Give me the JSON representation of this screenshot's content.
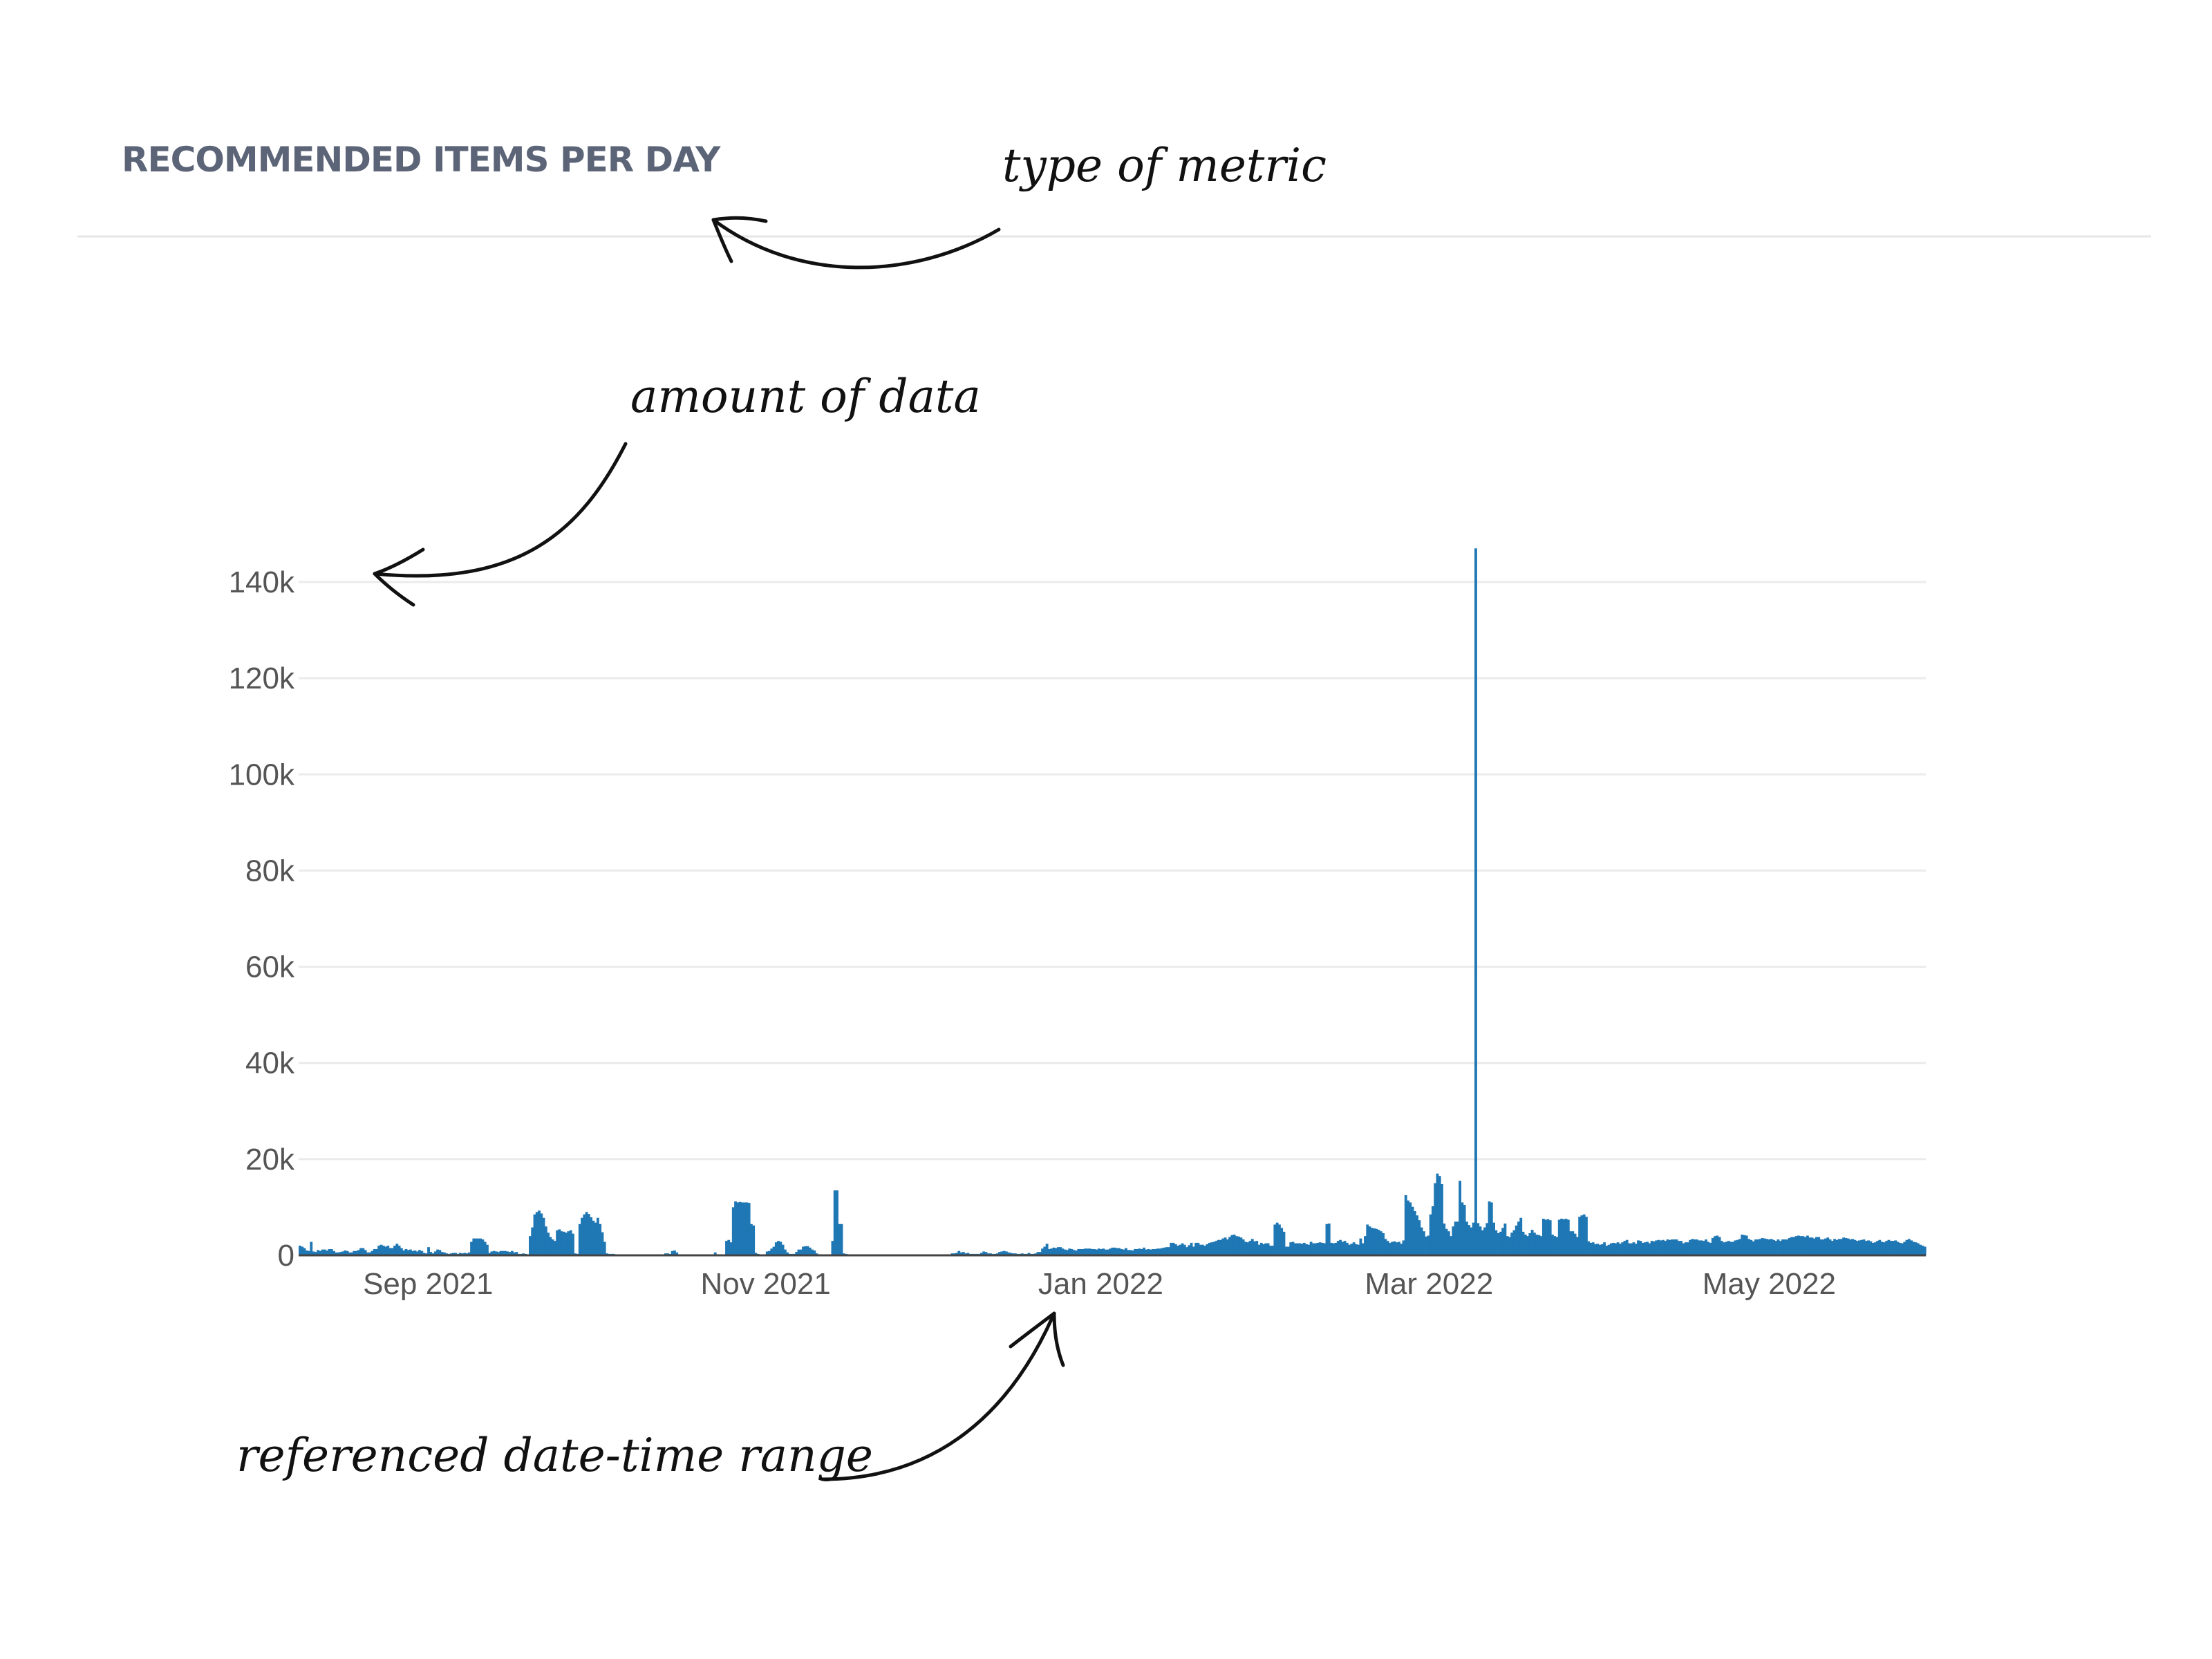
{
  "panel": {
    "title": "RECOMMENDED ITEMS PER DAY"
  },
  "annotations": {
    "metric": "type of metric",
    "amount": "amount of data",
    "range": "referenced date-time range"
  },
  "colors": {
    "bar": "#1f77b4",
    "title": "#5c6478",
    "grid": "#ebebeb"
  },
  "chart_data": {
    "type": "bar",
    "title": "RECOMMENDED ITEMS PER DAY",
    "xlabel": "",
    "ylabel": "",
    "ylim": [
      0,
      140000
    ],
    "grid": true,
    "y_ticks": [
      {
        "value": 0,
        "label": "0"
      },
      {
        "value": 20000,
        "label": "20k"
      },
      {
        "value": 40000,
        "label": "40k"
      },
      {
        "value": 60000,
        "label": "60k"
      },
      {
        "value": 80000,
        "label": "80k"
      },
      {
        "value": 100000,
        "label": "100k"
      },
      {
        "value": 120000,
        "label": "120k"
      },
      {
        "value": 140000,
        "label": "140k"
      }
    ],
    "x_start": "2021-08-20",
    "x_end": "2022-06-10",
    "x_ticks": [
      {
        "date": "2021-09-01",
        "label": "Sep 2021"
      },
      {
        "date": "2021-11-01",
        "label": "Nov 2021"
      },
      {
        "date": "2022-01-01",
        "label": "Jan 2022"
      },
      {
        "date": "2022-03-01",
        "label": "Mar 2022"
      },
      {
        "date": "2022-05-01",
        "label": "May 2022"
      }
    ],
    "series": [
      {
        "name": "Recommended items",
        "values": [
          2000,
          1800,
          1500,
          1000,
          900,
          2800,
          800,
          700,
          1100,
          900,
          1200,
          1200,
          1000,
          1300,
          1300,
          900,
          600,
          600,
          700,
          800,
          1000,
          900,
          600,
          600,
          900,
          900,
          1100,
          1500,
          1500,
          1100,
          600,
          600,
          900,
          1300,
          1300,
          2000,
          2200,
          2000,
          1800,
          2000,
          1500,
          1500,
          2000,
          2400,
          2000,
          1500,
          1000,
          1300,
          1100,
          1200,
          900,
          1000,
          800,
          1100,
          900,
          500,
          400,
          1700,
          700,
          400,
          800,
          1200,
          1100,
          700,
          600,
          400,
          300,
          400,
          500,
          500,
          300,
          500,
          400,
          500,
          400,
          600,
          2800,
          3500,
          3500,
          3500,
          3500,
          3300,
          2800,
          2200,
          500,
          800,
          900,
          800,
          700,
          900,
          900,
          900,
          800,
          700,
          900,
          600,
          700,
          300,
          300,
          400,
          300,
          200,
          4000,
          5800,
          8500,
          9000,
          9300,
          8700,
          7800,
          6000,
          4700,
          3800,
          3300,
          3000,
          5200,
          5400,
          5000,
          4900,
          4700,
          5000,
          5200,
          4500,
          400,
          300,
          6500,
          7800,
          8500,
          9000,
          8600,
          7900,
          7200,
          6800,
          7800,
          6500,
          4800,
          2800,
          400,
          300,
          300,
          300,
          200,
          200,
          200,
          200,
          200,
          200,
          200,
          200,
          200,
          200,
          200,
          200,
          200,
          200,
          200,
          200,
          200,
          200,
          200,
          200,
          200,
          200,
          400,
          400,
          300,
          900,
          1000,
          600,
          200,
          200,
          200,
          200,
          200,
          200,
          200,
          200,
          200,
          200,
          200,
          200,
          200,
          200,
          200,
          200,
          600,
          200,
          200,
          200,
          200,
          3000,
          3200,
          2700,
          10000,
          11200,
          11000,
          11100,
          11000,
          11000,
          11000,
          10900,
          6500,
          6200,
          500,
          300,
          200,
          200,
          200,
          800,
          900,
          1400,
          1800,
          2700,
          3000,
          2800,
          2200,
          1200,
          600,
          300,
          300,
          300,
          700,
          1200,
          1200,
          1800,
          1900,
          1900,
          1600,
          1200,
          1000,
          400,
          200,
          200,
          200,
          200,
          200,
          200,
          3000,
          13500,
          13500,
          6500,
          6500,
          400,
          300,
          200,
          200,
          200,
          200,
          200,
          200,
          200,
          200,
          200,
          200,
          200,
          200,
          200,
          200,
          200,
          200,
          200,
          200,
          200,
          200,
          200,
          200,
          200,
          200,
          200,
          0,
          0,
          0,
          0,
          0,
          0,
          0,
          0,
          0,
          0,
          0,
          0,
          0,
          0,
          0,
          0,
          0,
          0,
          0,
          0,
          0,
          400,
          400,
          500,
          900,
          600,
          700,
          400,
          500,
          300,
          300,
          300,
          300,
          300,
          500,
          800,
          700,
          400,
          400,
          300,
          300,
          400,
          700,
          800,
          900,
          800,
          600,
          500,
          400,
          400,
          300,
          300,
          400,
          300,
          300,
          500,
          300,
          300,
          400,
          700,
          700,
          1400,
          1800,
          2400,
          1300,
          1400,
          1600,
          1500,
          1700,
          1700,
          1400,
          1200,
          1100,
          1400,
          1300,
          1100,
          1000,
          1300,
          1300,
          1300,
          1400,
          1400,
          1400,
          1300,
          1300,
          1200,
          1400,
          1300,
          1400,
          1200,
          1200,
          1400,
          1600,
          1600,
          1500,
          1500,
          1300,
          1200,
          1500,
          1100,
          1100,
          1000,
          1300,
          1300,
          1400,
          1300,
          1600,
          1200,
          1300,
          1200,
          1300,
          1300,
          1400,
          1400,
          1500,
          1600,
          1700,
          1700,
          2600,
          2600,
          2300,
          2000,
          2200,
          2500,
          2200,
          1700,
          2100,
          2600,
          1800,
          2600,
          2600,
          2200,
          2200,
          2000,
          2300,
          2600,
          2700,
          2800,
          3000,
          3200,
          3200,
          3500,
          3700,
          3300,
          3800,
          4200,
          4300,
          4000,
          3900,
          3700,
          3300,
          2800,
          2700,
          3000,
          3400,
          2900,
          3000,
          2200,
          2600,
          2300,
          2500,
          2500,
          2000,
          2000,
          6400,
          6800,
          6400,
          5700,
          4900,
          1800,
          1800,
          2700,
          2800,
          2500,
          2500,
          2500,
          2400,
          2600,
          2300,
          2200,
          2800,
          2500,
          2500,
          2600,
          2700,
          2600,
          2500,
          6500,
          6600,
          2600,
          2500,
          2600,
          3000,
          3200,
          2800,
          3000,
          2600,
          2200,
          2400,
          2700,
          2300,
          2200,
          3500,
          2500,
          4000,
          6400,
          6000,
          5700,
          5600,
          5500,
          5300,
          5000,
          4600,
          3400,
          3000,
          2600,
          2800,
          2900,
          2700,
          2800,
          2400,
          3100,
          12500,
          11400,
          11000,
          10100,
          9200,
          8300,
          7300,
          5800,
          5000,
          3900,
          4100,
          8500,
          10200,
          15000,
          17000,
          16500,
          14800,
          6600,
          5500,
          5000,
          4000,
          6000,
          7000,
          7000,
          15500,
          11000,
          10500,
          7000,
          6300,
          5800,
          6800,
          147000,
          6700,
          6000,
          5200,
          5800,
          6700,
          11200,
          11000,
          6800,
          5200,
          4600,
          4900,
          5700,
          6600,
          4000,
          3800,
          4700,
          5200,
          6200,
          7000,
          7800,
          4900,
          4300,
          4000,
          4600,
          5300,
          4700,
          4300,
          4200,
          4000,
          7600,
          7400,
          7500,
          7300,
          4300,
          4000,
          3800,
          7400,
          7600,
          7500,
          7600,
          7400,
          5000,
          5000,
          4500,
          3800,
          8000,
          8300,
          8500,
          8000,
          2900,
          2600,
          2700,
          2300,
          2400,
          2200,
          2300,
          2700,
          2000,
          2200,
          2500,
          2600,
          2500,
          2700,
          2400,
          2700,
          3000,
          3200,
          2500,
          2500,
          2700,
          2400,
          3100,
          3000,
          2600,
          2700,
          2800,
          2500,
          3000,
          2900,
          3100,
          3200,
          3100,
          3200,
          3000,
          3300,
          3200,
          3300,
          3300,
          3300,
          3000,
          3000,
          2500,
          2700,
          2700,
          3200,
          3400,
          3300,
          3300,
          3100,
          3100,
          3000,
          3300,
          2800,
          2600,
          3600,
          4000,
          4100,
          3800,
          3000,
          2700,
          2800,
          3000,
          2800,
          2800,
          3100,
          3200,
          3400,
          4300,
          4200,
          4100,
          3400,
          3200,
          2900,
          3300,
          3300,
          3400,
          3600,
          3500,
          3400,
          3300,
          3400,
          3200,
          3000,
          3300,
          3000,
          3300,
          3300,
          3300,
          3600,
          3800,
          3800,
          4000,
          4100,
          4000,
          4000,
          3800,
          4100,
          3700,
          3700,
          3500,
          3800,
          3800,
          3300,
          3300,
          3500,
          3700,
          3300,
          3000,
          3400,
          3200,
          3400,
          3400,
          3700,
          3600,
          3500,
          3300,
          3400,
          3200,
          3000,
          3100,
          3200,
          3300,
          3000,
          3100,
          2900,
          2600,
          2700,
          3000,
          3200,
          2800,
          2700,
          3000,
          3200,
          3000,
          3000,
          3100,
          2800,
          2600,
          2500,
          2800,
          3200,
          3400,
          3100,
          2800,
          2700,
          2500,
          2200,
          2000,
          1800
        ]
      }
    ]
  }
}
